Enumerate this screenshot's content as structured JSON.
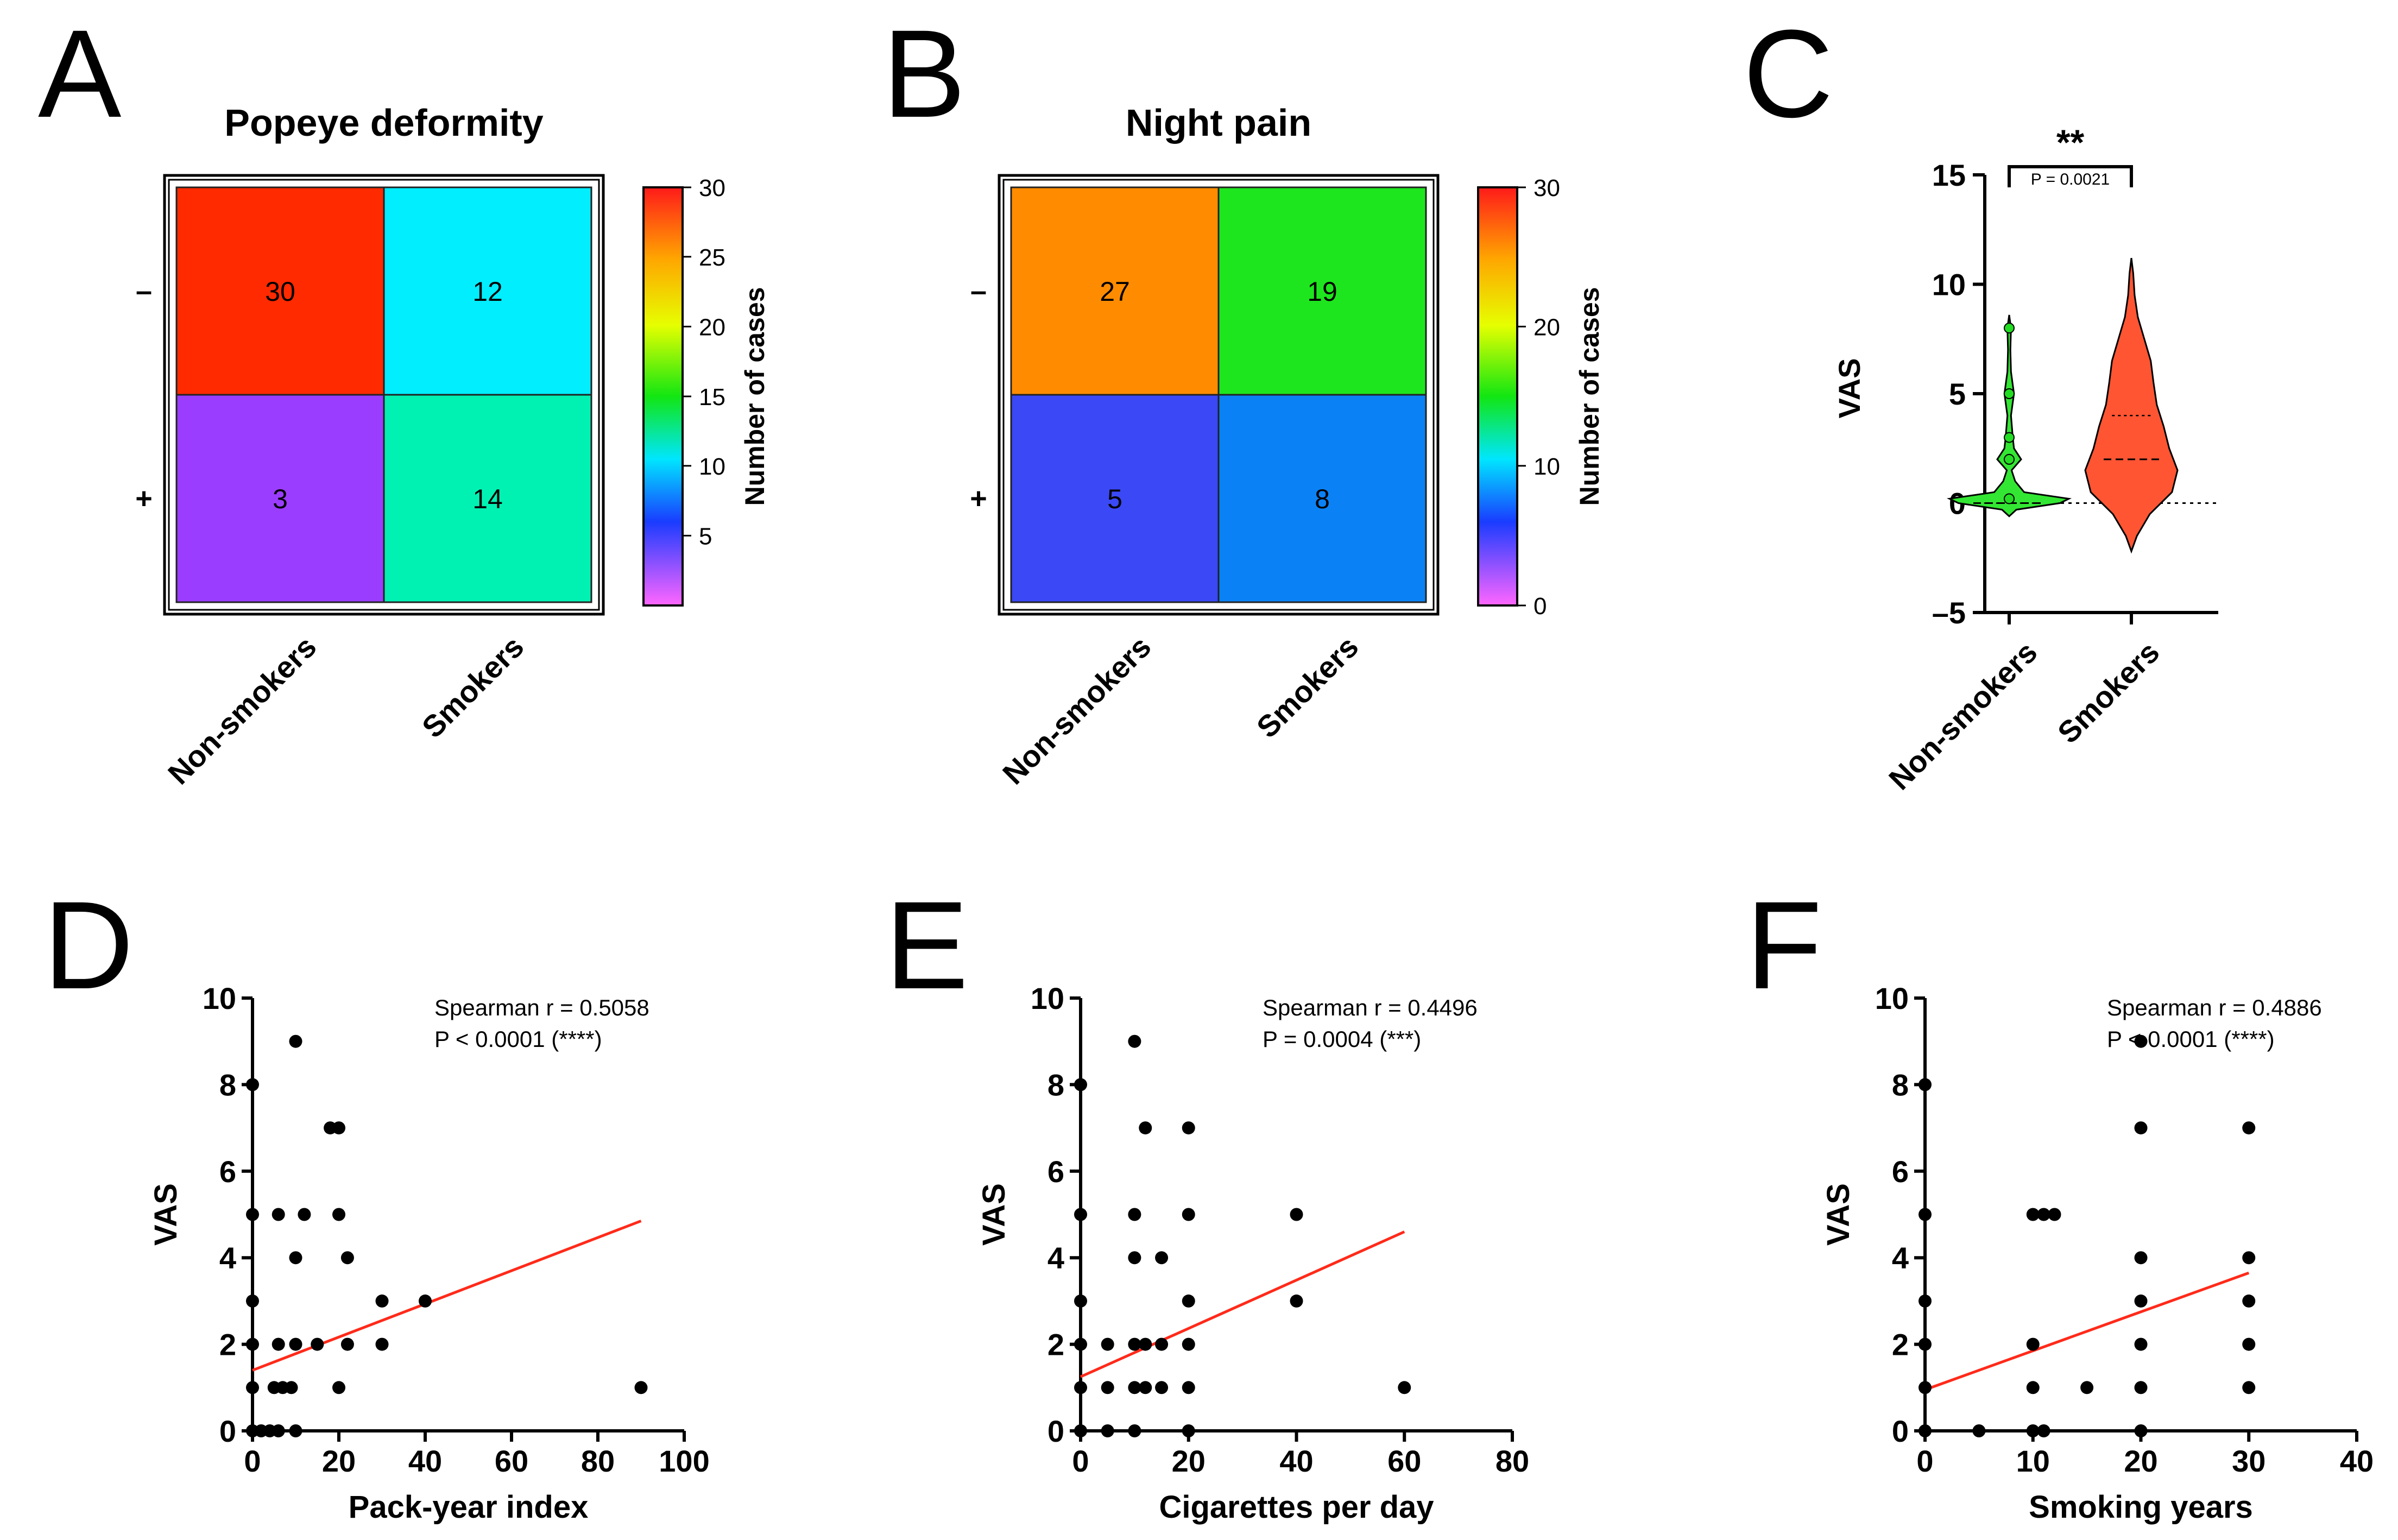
{
  "chart_data": [
    {
      "panel": "A",
      "type": "heatmap",
      "title": "Popeye deformity",
      "columns": [
        "Non-smokers",
        "Smokers"
      ],
      "rows": [
        "–",
        "+"
      ],
      "values": [
        [
          30,
          12
        ],
        [
          3,
          14
        ]
      ],
      "cell_colors": [
        [
          "#ff2a00",
          "#00eeff"
        ],
        [
          "#9b3dff",
          "#00f2b3"
        ]
      ],
      "colorbar": {
        "label": "Number of cases",
        "ticks": [
          "30",
          "25",
          "20",
          "15",
          "10",
          "5"
        ],
        "range": [
          0,
          30
        ]
      }
    },
    {
      "panel": "B",
      "type": "heatmap",
      "title": "Night pain",
      "columns": [
        "Non-smokers",
        "Smokers"
      ],
      "rows": [
        "–",
        "+"
      ],
      "values": [
        [
          27,
          19
        ],
        [
          5,
          8
        ]
      ],
      "cell_colors": [
        [
          "#ff8c00",
          "#1ee61e"
        ],
        [
          "#3a48f5",
          "#0a82f5"
        ]
      ],
      "colorbar": {
        "label": "Number of cases",
        "ticks": [
          "30",
          "20",
          "10",
          "0"
        ],
        "range": [
          0,
          30
        ]
      }
    },
    {
      "panel": "C",
      "type": "violin",
      "ylabel": "VAS",
      "ylim": [
        -5,
        15
      ],
      "yticks": [
        "15",
        "10",
        "5",
        "0",
        "–5"
      ],
      "categories": [
        "Non-smokers",
        "Smokers"
      ],
      "colors": [
        "#33e633",
        "#ff5533"
      ],
      "significance": {
        "stars": "**",
        "p_text": "P = 0.0021"
      },
      "series": [
        {
          "name": "Non-smokers",
          "min": 0,
          "max": 8,
          "median": 0,
          "q1": 0,
          "q3": 0,
          "profile": [
            [
              -0.6,
              0.0
            ],
            [
              -0.3,
              0.12
            ],
            [
              0,
              0.85
            ],
            [
              0.2,
              1.0
            ],
            [
              0.5,
              0.25
            ],
            [
              1,
              0.1
            ],
            [
              1.5,
              0.04
            ],
            [
              2,
              0.2
            ],
            [
              2.5,
              0.08
            ],
            [
              3,
              0.06
            ],
            [
              4,
              0.03
            ],
            [
              5,
              0.08
            ],
            [
              6,
              0.03
            ],
            [
              7,
              0.02
            ],
            [
              8,
              0.03
            ],
            [
              8.6,
              0.0
            ]
          ]
        },
        {
          "name": "Smokers",
          "min": 0,
          "max": 9,
          "median": 2,
          "q1": 0,
          "q3": 4,
          "profile": [
            [
              -2.2,
              0.0
            ],
            [
              -1.5,
              0.12
            ],
            [
              -0.5,
              0.4
            ],
            [
              0.5,
              0.88
            ],
            [
              1.5,
              1.0
            ],
            [
              2.5,
              0.82
            ],
            [
              3.5,
              0.7
            ],
            [
              4.5,
              0.55
            ],
            [
              5.5,
              0.48
            ],
            [
              6.5,
              0.42
            ],
            [
              7.5,
              0.28
            ],
            [
              8.5,
              0.14
            ],
            [
              9.5,
              0.07
            ],
            [
              10.5,
              0.04
            ],
            [
              11.2,
              0.0
            ]
          ]
        }
      ]
    },
    {
      "panel": "D",
      "type": "scatter",
      "xlabel": "Pack-year index",
      "ylabel": "VAS",
      "xlim": [
        0,
        100
      ],
      "ylim": [
        0,
        10
      ],
      "xticks": [
        "0",
        "20",
        "40",
        "60",
        "80",
        "100"
      ],
      "yticks": [
        "0",
        "2",
        "4",
        "6",
        "8",
        "10"
      ],
      "annotation": [
        "Spearman r = 0.5058",
        "P < 0.0001 (****)"
      ],
      "points": [
        [
          0,
          0
        ],
        [
          0,
          1
        ],
        [
          0,
          2
        ],
        [
          0,
          3
        ],
        [
          0,
          5
        ],
        [
          0,
          8
        ],
        [
          2,
          0
        ],
        [
          4,
          0
        ],
        [
          5,
          1
        ],
        [
          6,
          0
        ],
        [
          6,
          2
        ],
        [
          6,
          5
        ],
        [
          7,
          1
        ],
        [
          9,
          1
        ],
        [
          10,
          0
        ],
        [
          10,
          2
        ],
        [
          10,
          4
        ],
        [
          10,
          9
        ],
        [
          12,
          5
        ],
        [
          15,
          2
        ],
        [
          18,
          7
        ],
        [
          20,
          1
        ],
        [
          20,
          5
        ],
        [
          20,
          7
        ],
        [
          22,
          2
        ],
        [
          22,
          4
        ],
        [
          30,
          2
        ],
        [
          30,
          3
        ],
        [
          40,
          3
        ],
        [
          90,
          1
        ]
      ],
      "fit": {
        "x": [
          0,
          90
        ],
        "y": [
          1.4,
          4.85
        ]
      }
    },
    {
      "panel": "E",
      "type": "scatter",
      "xlabel": "Cigarettes per day",
      "ylabel": "VAS",
      "xlim": [
        0,
        80
      ],
      "ylim": [
        0,
        10
      ],
      "xticks": [
        "0",
        "20",
        "40",
        "60",
        "80"
      ],
      "yticks": [
        "0",
        "2",
        "4",
        "6",
        "8",
        "10"
      ],
      "annotation": [
        "Spearman r = 0.4496",
        "P = 0.0004 (***)"
      ],
      "points": [
        [
          0,
          0
        ],
        [
          0,
          1
        ],
        [
          0,
          2
        ],
        [
          0,
          3
        ],
        [
          0,
          5
        ],
        [
          0,
          8
        ],
        [
          5,
          0
        ],
        [
          5,
          1
        ],
        [
          5,
          2
        ],
        [
          10,
          0
        ],
        [
          10,
          1
        ],
        [
          10,
          2
        ],
        [
          10,
          4
        ],
        [
          10,
          5
        ],
        [
          10,
          9
        ],
        [
          12,
          1
        ],
        [
          12,
          2
        ],
        [
          12,
          7
        ],
        [
          15,
          1
        ],
        [
          15,
          2
        ],
        [
          15,
          4
        ],
        [
          20,
          0
        ],
        [
          20,
          1
        ],
        [
          20,
          2
        ],
        [
          20,
          3
        ],
        [
          20,
          5
        ],
        [
          20,
          7
        ],
        [
          40,
          3
        ],
        [
          40,
          5
        ],
        [
          60,
          1
        ]
      ],
      "fit": {
        "x": [
          0,
          60
        ],
        "y": [
          1.25,
          4.6
        ]
      }
    },
    {
      "panel": "F",
      "type": "scatter",
      "xlabel": "Smoking years",
      "ylabel": "VAS",
      "xlim": [
        0,
        40
      ],
      "ylim": [
        0,
        10
      ],
      "xticks": [
        "0",
        "10",
        "20",
        "30",
        "40"
      ],
      "yticks": [
        "0",
        "2",
        "4",
        "6",
        "8",
        "10"
      ],
      "annotation": [
        "Spearman r = 0.4886",
        "P < 0.0001 (****)"
      ],
      "points": [
        [
          0,
          0
        ],
        [
          0,
          1
        ],
        [
          0,
          2
        ],
        [
          0,
          3
        ],
        [
          0,
          5
        ],
        [
          0,
          8
        ],
        [
          5,
          0
        ],
        [
          10,
          0
        ],
        [
          10,
          1
        ],
        [
          10,
          2
        ],
        [
          10,
          5
        ],
        [
          11,
          0
        ],
        [
          11,
          5
        ],
        [
          12,
          5
        ],
        [
          15,
          1
        ],
        [
          20,
          0
        ],
        [
          20,
          1
        ],
        [
          20,
          2
        ],
        [
          20,
          3
        ],
        [
          20,
          4
        ],
        [
          20,
          7
        ],
        [
          20,
          9
        ],
        [
          30,
          1
        ],
        [
          30,
          2
        ],
        [
          30,
          3
        ],
        [
          30,
          4
        ],
        [
          30,
          7
        ]
      ],
      "fit": {
        "x": [
          0,
          30
        ],
        "y": [
          0.95,
          3.65
        ]
      }
    }
  ]
}
